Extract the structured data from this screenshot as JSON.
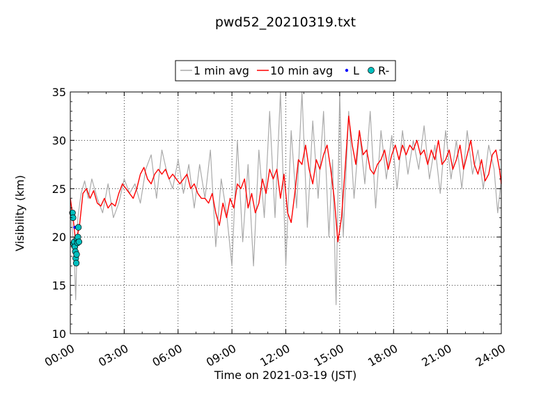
{
  "chart_data": {
    "type": "line",
    "title": "pwd52_20210319.txt",
    "xlabel": "Time on 2021-03-19 (JST)",
    "ylabel": "Visibility (km)",
    "xlim": [
      0,
      24
    ],
    "ylim": [
      10,
      35
    ],
    "x_ticks": [
      "00:00",
      "03:00",
      "06:00",
      "09:00",
      "12:00",
      "15:00",
      "18:00",
      "21:00",
      "24:00"
    ],
    "y_ticks": [
      "10",
      "15",
      "20",
      "25",
      "30",
      "35"
    ],
    "grid": true,
    "legend_position": "top-center",
    "series": [
      {
        "name": "1 min avg",
        "color": "#aaaaaa",
        "style": "line",
        "x": [
          0.0,
          0.1,
          0.2,
          0.3,
          0.42,
          0.6,
          0.8,
          1.0,
          1.2,
          1.5,
          1.8,
          2.1,
          2.4,
          2.7,
          3.0,
          3.3,
          3.6,
          3.9,
          4.2,
          4.5,
          4.8,
          5.1,
          5.4,
          5.7,
          6.0,
          6.3,
          6.6,
          6.9,
          7.2,
          7.5,
          7.8,
          8.1,
          8.4,
          8.7,
          9.0,
          9.3,
          9.6,
          9.9,
          10.2,
          10.5,
          10.8,
          11.1,
          11.4,
          11.7,
          12.0,
          12.3,
          12.6,
          12.9,
          13.2,
          13.5,
          13.8,
          14.1,
          14.4,
          14.6,
          14.8,
          15.0,
          15.2,
          15.5,
          15.8,
          16.1,
          16.4,
          16.7,
          17.0,
          17.3,
          17.6,
          17.9,
          18.2,
          18.5,
          18.8,
          19.1,
          19.4,
          19.7,
          20.0,
          20.3,
          20.6,
          20.9,
          21.2,
          21.5,
          21.8,
          22.1,
          22.4,
          22.7,
          23.0,
          23.3,
          23.6,
          23.8,
          24.0
        ],
        "y": [
          23.5,
          21.0,
          19.0,
          13.5,
          22.0,
          24.5,
          25.8,
          24.0,
          26.0,
          24.0,
          22.5,
          25.5,
          22.0,
          23.5,
          26.0,
          24.5,
          25.5,
          23.5,
          27.0,
          28.5,
          24.0,
          29.0,
          26.5,
          25.0,
          28.0,
          24.5,
          27.5,
          23.0,
          27.5,
          24.0,
          29.0,
          19.0,
          26.0,
          22.5,
          17.0,
          30.0,
          19.5,
          27.5,
          17.0,
          29.0,
          22.0,
          33.0,
          22.0,
          35.0,
          17.0,
          31.0,
          23.0,
          35.0,
          21.0,
          32.0,
          24.0,
          33.0,
          20.0,
          28.0,
          13.0,
          35.0,
          20.0,
          33.0,
          24.0,
          31.0,
          25.5,
          33.0,
          23.0,
          31.0,
          26.0,
          30.5,
          25.0,
          31.0,
          26.5,
          30.0,
          27.0,
          31.5,
          26.0,
          29.5,
          24.5,
          31.0,
          26.0,
          30.0,
          25.0,
          31.0,
          26.5,
          29.0,
          25.0,
          29.5,
          27.0,
          22.5,
          26.0
        ]
      },
      {
        "name": "10 min avg",
        "color": "#ff0000",
        "style": "line",
        "x": [
          0.0,
          0.15,
          0.3,
          0.5,
          0.7,
          0.9,
          1.1,
          1.3,
          1.5,
          1.7,
          1.9,
          2.1,
          2.3,
          2.5,
          2.7,
          2.9,
          3.1,
          3.3,
          3.5,
          3.7,
          3.9,
          4.1,
          4.3,
          4.5,
          4.7,
          4.9,
          5.1,
          5.3,
          5.5,
          5.7,
          5.9,
          6.1,
          6.3,
          6.5,
          6.7,
          6.9,
          7.1,
          7.3,
          7.5,
          7.7,
          7.9,
          8.1,
          8.3,
          8.5,
          8.7,
          8.9,
          9.1,
          9.3,
          9.5,
          9.7,
          9.9,
          10.1,
          10.3,
          10.5,
          10.7,
          10.9,
          11.1,
          11.3,
          11.5,
          11.7,
          11.9,
          12.1,
          12.3,
          12.5,
          12.7,
          12.9,
          13.1,
          13.3,
          13.5,
          13.7,
          13.9,
          14.1,
          14.3,
          14.5,
          14.7,
          14.9,
          15.1,
          15.3,
          15.5,
          15.7,
          15.9,
          16.1,
          16.3,
          16.5,
          16.7,
          16.9,
          17.1,
          17.3,
          17.5,
          17.7,
          17.9,
          18.1,
          18.3,
          18.5,
          18.7,
          18.9,
          19.1,
          19.3,
          19.5,
          19.7,
          19.9,
          20.1,
          20.3,
          20.5,
          20.7,
          20.9,
          21.1,
          21.3,
          21.5,
          21.7,
          21.9,
          22.1,
          22.3,
          22.5,
          22.7,
          22.9,
          23.1,
          23.3,
          23.5,
          23.7,
          23.9,
          24.0
        ],
        "y": [
          24.0,
          22.0,
          19.5,
          21.0,
          24.5,
          25.0,
          24.0,
          24.8,
          23.5,
          23.2,
          24.0,
          23.0,
          23.5,
          23.2,
          24.5,
          25.5,
          25.0,
          24.5,
          24.0,
          25.0,
          26.5,
          27.2,
          26.0,
          25.5,
          26.5,
          27.0,
          26.5,
          27.0,
          26.0,
          26.5,
          26.0,
          25.5,
          26.0,
          26.5,
          25.0,
          25.5,
          24.5,
          24.0,
          24.0,
          23.5,
          24.5,
          22.5,
          21.2,
          23.5,
          22.0,
          24.0,
          23.0,
          25.5,
          25.0,
          26.0,
          23.0,
          24.5,
          22.5,
          23.5,
          26.0,
          24.5,
          27.0,
          26.0,
          27.0,
          24.0,
          26.5,
          22.5,
          21.5,
          24.5,
          28.0,
          27.5,
          29.5,
          27.0,
          25.5,
          28.0,
          27.0,
          28.5,
          29.5,
          27.0,
          24.0,
          19.5,
          22.0,
          27.0,
          32.5,
          29.5,
          27.5,
          31.0,
          28.5,
          29.0,
          27.0,
          26.5,
          27.5,
          28.0,
          29.0,
          27.0,
          28.5,
          29.5,
          28.0,
          29.5,
          28.5,
          29.5,
          29.0,
          30.0,
          28.5,
          29.0,
          27.5,
          29.0,
          28.0,
          30.0,
          27.5,
          28.0,
          29.0,
          27.0,
          28.0,
          29.5,
          27.0,
          28.5,
          30.0,
          27.5,
          26.5,
          28.0,
          25.8,
          26.5,
          28.5,
          29.0,
          27.0,
          25.5
        ]
      },
      {
        "name": "L",
        "color": "#0000ff",
        "style": "dot",
        "x": [
          0.25,
          0.38
        ],
        "y": [
          21.0,
          19.5
        ]
      },
      {
        "name": "R-",
        "color": "#00bfbf",
        "style": "marker",
        "x": [
          0.12,
          0.15,
          0.18,
          0.22,
          0.25,
          0.28,
          0.3,
          0.33,
          0.35,
          0.38,
          0.4,
          0.42,
          0.45,
          0.48
        ],
        "y": [
          22.5,
          22.0,
          19.3,
          19.5,
          19.0,
          18.5,
          17.8,
          17.3,
          18.2,
          19.8,
          19.4,
          20.0,
          21.0,
          19.5
        ]
      }
    ]
  }
}
